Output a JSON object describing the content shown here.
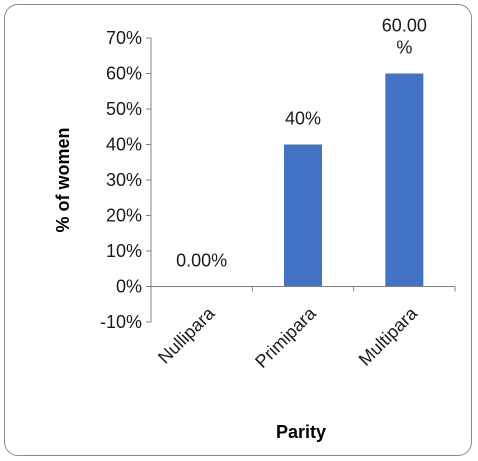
{
  "chart_data": {
    "type": "bar",
    "categories": [
      "Nullipara",
      "Primipara",
      "Multipara"
    ],
    "values": [
      0,
      40,
      60
    ],
    "data_labels": [
      "0.00%",
      "40%",
      "60.00\n%"
    ],
    "xlabel": "Parity",
    "ylabel": "% of women",
    "ylim": [
      -10,
      70
    ],
    "yticks": [
      70,
      60,
      50,
      40,
      30,
      20,
      10,
      0,
      -10
    ],
    "ytick_labels": [
      "70%",
      "60%",
      "50%",
      "40%",
      "30%",
      "20%",
      "10%",
      "0%",
      "-10%"
    ],
    "grid": false,
    "legend": "none",
    "bar_color": "#4472c4"
  }
}
